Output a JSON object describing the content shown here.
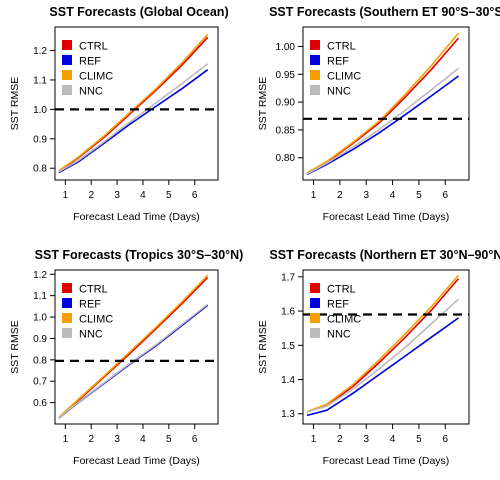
{
  "chart_data": [
    {
      "type": "line",
      "title": "SST Forecasts (Global Ocean)",
      "xlabel": "Forecast Lead Time (Days)",
      "ylabel": "SST RMSE",
      "xlim": [
        0.6,
        6.9
      ],
      "ylim": [
        0.76,
        1.28
      ],
      "x_ticks": [
        "1",
        "2",
        "3",
        "4",
        "5",
        "6"
      ],
      "y_ticks": [
        "0.8",
        "0.9",
        "1.0",
        "1.1",
        "1.2"
      ],
      "y_tick_values": [
        0.8,
        0.9,
        1.0,
        1.1,
        1.2
      ],
      "reference_line": 1.0,
      "legend_placement": "top-left",
      "x": [
        0.75,
        1.5,
        2.5,
        3.5,
        4.5,
        5.5,
        6.5
      ],
      "series": [
        {
          "name": "CTRL",
          "color": "#e00000",
          "values": [
            0.79,
            0.835,
            0.905,
            0.985,
            1.065,
            1.15,
            1.245
          ]
        },
        {
          "name": "REF",
          "color": "#0000dd",
          "values": [
            0.785,
            0.822,
            0.885,
            0.95,
            1.01,
            1.07,
            1.135
          ]
        },
        {
          "name": "CLIMC",
          "color": "#f5a000",
          "values": [
            0.792,
            0.838,
            0.91,
            0.99,
            1.07,
            1.158,
            1.255
          ]
        },
        {
          "name": "NNC",
          "color": "#bbbbbb",
          "values": [
            0.788,
            0.826,
            0.89,
            0.957,
            1.022,
            1.087,
            1.155
          ]
        }
      ]
    },
    {
      "type": "line",
      "title": "SST Forecasts (Southern ET 90°S–30°S)",
      "xlabel": "Forecast Lead Time (Days)",
      "ylabel": "SST RMSE",
      "xlim": [
        0.6,
        6.9
      ],
      "ylim": [
        0.76,
        1.035
      ],
      "x_ticks": [
        "1",
        "2",
        "3",
        "4",
        "5",
        "6"
      ],
      "y_ticks": [
        "0.80",
        "0.85",
        "0.90",
        "0.95",
        "1.00"
      ],
      "y_tick_values": [
        0.8,
        0.85,
        0.9,
        0.95,
        1.0
      ],
      "reference_line": 0.87,
      "legend_placement": "top-left",
      "x": [
        0.75,
        1.5,
        2.5,
        3.5,
        4.5,
        5.5,
        6.5
      ],
      "series": [
        {
          "name": "CTRL",
          "color": "#e00000",
          "values": [
            0.772,
            0.792,
            0.826,
            0.863,
            0.91,
            0.96,
            1.015
          ]
        },
        {
          "name": "REF",
          "color": "#0000dd",
          "values": [
            0.77,
            0.788,
            0.815,
            0.845,
            0.878,
            0.912,
            0.947
          ]
        },
        {
          "name": "CLIMC",
          "color": "#f5a000",
          "values": [
            0.773,
            0.793,
            0.828,
            0.866,
            0.915,
            0.967,
            1.024
          ]
        },
        {
          "name": "NNC",
          "color": "#bbbbbb",
          "values": [
            0.771,
            0.79,
            0.819,
            0.851,
            0.886,
            0.923,
            0.961
          ]
        }
      ]
    },
    {
      "type": "line",
      "title": "SST Forecasts (Tropics 30°S–30°N)",
      "xlabel": "Forecast Lead Time (Days)",
      "ylabel": "SST RMSE",
      "xlim": [
        0.6,
        6.9
      ],
      "ylim": [
        0.5,
        1.22
      ],
      "x_ticks": [
        "1",
        "2",
        "3",
        "4",
        "5",
        "6"
      ],
      "y_ticks": [
        "0.6",
        "0.7",
        "0.8",
        "0.9",
        "1.0",
        "1.1",
        "1.2"
      ],
      "y_tick_values": [
        0.6,
        0.7,
        0.8,
        0.9,
        1.0,
        1.1,
        1.2
      ],
      "reference_line": 0.795,
      "legend_placement": "top-left",
      "x": [
        0.75,
        1.5,
        2.5,
        3.5,
        4.5,
        5.5,
        6.5
      ],
      "series": [
        {
          "name": "CTRL",
          "color": "#e00000",
          "values": [
            0.53,
            0.61,
            0.72,
            0.83,
            0.945,
            1.062,
            1.185
          ]
        },
        {
          "name": "REF",
          "color": "#0000dd",
          "values": [
            0.528,
            0.6,
            0.69,
            0.78,
            0.865,
            0.96,
            1.055
          ]
        },
        {
          "name": "CLIMC",
          "color": "#f5a000",
          "values": [
            0.532,
            0.615,
            0.725,
            0.838,
            0.952,
            1.07,
            1.195
          ]
        },
        {
          "name": "NNC",
          "color": "#bbbbbb",
          "values": [
            0.529,
            0.602,
            0.693,
            0.784,
            0.87,
            0.965,
            1.06
          ]
        }
      ]
    },
    {
      "type": "line",
      "title": "SST Forecasts (Northern ET 30°N–90°N)",
      "xlabel": "Forecast Lead Time (Days)",
      "ylabel": "SST RMSE",
      "xlim": [
        0.6,
        6.9
      ],
      "ylim": [
        1.27,
        1.72
      ],
      "x_ticks": [
        "1",
        "2",
        "3",
        "4",
        "5",
        "6"
      ],
      "y_ticks": [
        "1.3",
        "1.4",
        "1.5",
        "1.6",
        "1.7"
      ],
      "y_tick_values": [
        1.3,
        1.4,
        1.5,
        1.6,
        1.7
      ],
      "reference_line": 1.59,
      "legend_placement": "top-left",
      "x": [
        0.75,
        1.5,
        2.5,
        3.5,
        4.5,
        5.5,
        6.5
      ],
      "series": [
        {
          "name": "CTRL",
          "color": "#e00000",
          "values": [
            1.305,
            1.325,
            1.38,
            1.45,
            1.525,
            1.605,
            1.695
          ]
        },
        {
          "name": "REF",
          "color": "#0000dd",
          "values": [
            1.295,
            1.31,
            1.36,
            1.415,
            1.47,
            1.525,
            1.58
          ]
        },
        {
          "name": "CLIMC",
          "color": "#f5a000",
          "values": [
            1.306,
            1.328,
            1.385,
            1.458,
            1.535,
            1.615,
            1.705
          ]
        },
        {
          "name": "NNC",
          "color": "#bbbbbb",
          "values": [
            1.305,
            1.322,
            1.372,
            1.432,
            1.495,
            1.565,
            1.635
          ]
        }
      ]
    }
  ]
}
